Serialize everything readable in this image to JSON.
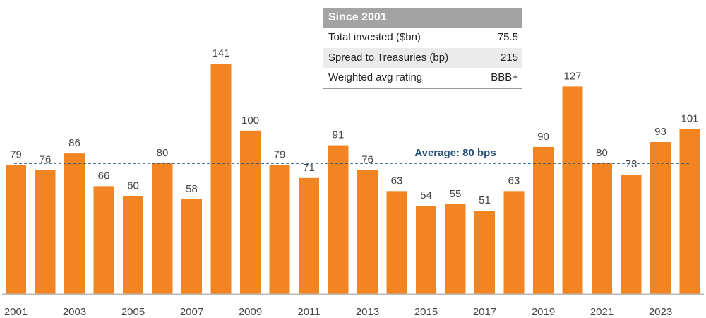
{
  "chart_data": {
    "type": "bar",
    "categories": [
      "2001",
      "2002",
      "2003",
      "2004",
      "2005",
      "2006",
      "2007",
      "2008",
      "2009",
      "2010",
      "2011",
      "2012",
      "2013",
      "2014",
      "2015",
      "2016",
      "2017",
      "2018",
      "2019",
      "2020",
      "2021",
      "2022",
      "2023",
      "2024"
    ],
    "tick_labels": [
      "2001",
      "2003",
      "2005",
      "2007",
      "2009",
      "2011",
      "2013",
      "2015",
      "2017",
      "2019",
      "2021",
      "2023"
    ],
    "values": [
      79,
      76,
      86,
      66,
      60,
      80,
      58,
      141,
      100,
      79,
      71,
      91,
      76,
      63,
      54,
      55,
      51,
      63,
      90,
      127,
      80,
      73,
      93,
      101
    ],
    "average": {
      "value": 80,
      "label": "Average: 80 bps"
    },
    "ylim": [
      0,
      150
    ],
    "grid": false,
    "bar_color": "#f28422",
    "average_color": "#1f4e79"
  },
  "table": {
    "title": "Since 2001",
    "rows": [
      {
        "label": "Total invested ($bn)",
        "value": "75.5"
      },
      {
        "label": "Spread to Treasuries (bp)",
        "value": "215"
      },
      {
        "label": "Weighted avg rating",
        "value": "BBB+"
      }
    ]
  }
}
